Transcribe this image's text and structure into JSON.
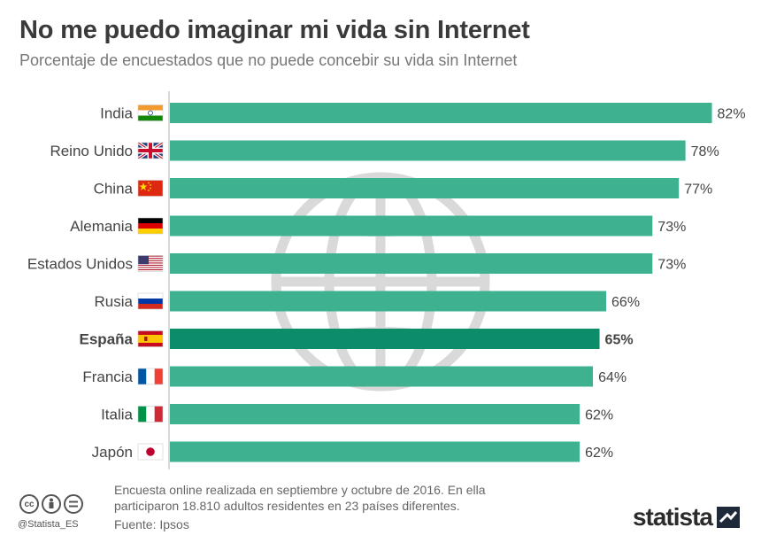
{
  "header": {
    "title": "No me puedo imaginar mi vida sin Internet",
    "subtitle": "Porcentaje de encuestados que no puede concebir su vida sin Internet"
  },
  "chart_data": {
    "type": "bar",
    "orientation": "horizontal",
    "unit": "%",
    "categories": [
      "India",
      "Reino Unido",
      "China",
      "Alemania",
      "Estados Unidos",
      "Rusia",
      "España",
      "Francia",
      "Italia",
      "Japón"
    ],
    "values": [
      82,
      78,
      77,
      73,
      73,
      66,
      65,
      64,
      62,
      62
    ],
    "value_labels": [
      "82%",
      "78%",
      "77%",
      "73%",
      "73%",
      "66%",
      "65%",
      "64%",
      "62%",
      "62%"
    ],
    "flags": [
      "india-flag-icon",
      "uk-flag-icon",
      "china-flag-icon",
      "germany-flag-icon",
      "usa-flag-icon",
      "russia-flag-icon",
      "spain-flag-icon",
      "france-flag-icon",
      "italy-flag-icon",
      "japan-flag-icon"
    ],
    "highlight": "España",
    "xlim": [
      0,
      85
    ],
    "grid": false,
    "colors": {
      "bar": "#3eb190",
      "highlight": "#0d8c6a",
      "background_icon": "globe-icon"
    }
  },
  "footer": {
    "note": "Encuesta online realizada en septiembre y octubre de 2016. En ella participaron 18.810 adultos residentes en 23 países diferentes.",
    "source": "Fuente: Ipsos",
    "handle": "@Statista_ES",
    "brand": "statista",
    "license_icons": [
      "cc-icon",
      "by-icon",
      "nd-icon"
    ]
  }
}
